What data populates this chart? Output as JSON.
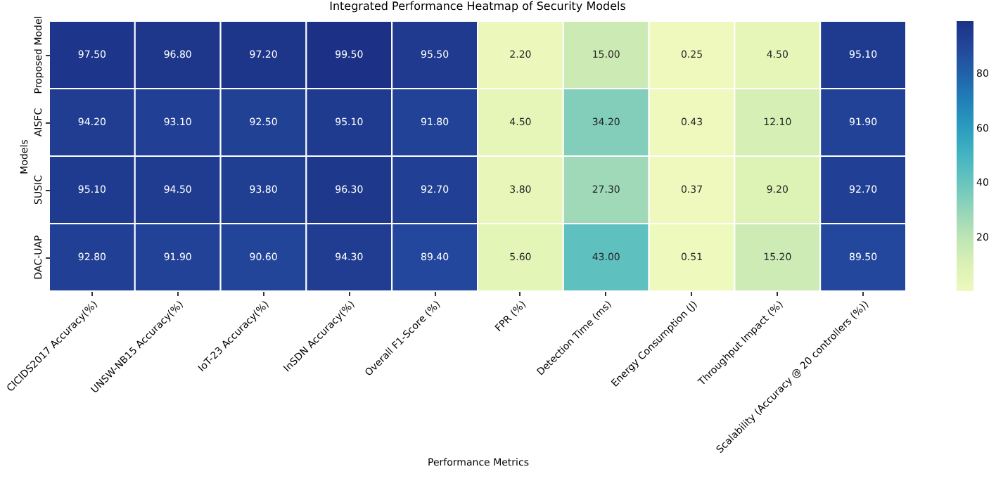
{
  "chart_data": {
    "type": "heatmap",
    "title": "Integrated Performance Heatmap of Security Models",
    "xlabel": "Performance Metrics",
    "ylabel": "Models",
    "categories": [
      "CICIDS2017 Accuracy(%)",
      "UNSW-NB15 Accuracy(%)",
      "IoT-23 Accuracy(%)",
      "InSDN Accuracy(%)",
      "Overall F1-Score (%)",
      "FPR (%)",
      "Detection Time (ms)",
      "Energy Consumption (J)",
      "Throughput Impact (%)",
      "Scalability (Accuracy @ 20 controllers (%))"
    ],
    "y_categories": [
      "Proposed Model",
      "AISFC",
      "SUSIC",
      "DAC-UAP"
    ],
    "cells": [
      [
        97.5,
        96.8,
        97.2,
        99.5,
        95.5,
        2.2,
        15.0,
        0.25,
        4.5,
        95.1
      ],
      [
        94.2,
        93.1,
        92.5,
        95.1,
        91.8,
        4.5,
        34.2,
        0.43,
        12.1,
        91.9
      ],
      [
        95.1,
        94.5,
        93.8,
        96.3,
        92.7,
        3.8,
        27.3,
        0.37,
        9.2,
        92.7
      ],
      [
        92.8,
        91.9,
        90.6,
        94.3,
        89.4,
        5.6,
        43.0,
        0.51,
        15.2,
        89.5
      ]
    ],
    "cell_labels": [
      [
        "97.50",
        "96.80",
        "97.20",
        "99.50",
        "95.50",
        "2.20",
        "15.00",
        "0.25",
        "4.50",
        "95.10"
      ],
      [
        "94.20",
        "93.10",
        "92.50",
        "95.10",
        "91.80",
        "4.50",
        "34.20",
        "0.43",
        "12.10",
        "91.90"
      ],
      [
        "95.10",
        "94.50",
        "93.80",
        "96.30",
        "92.70",
        "3.80",
        "27.30",
        "0.37",
        "9.20",
        "92.70"
      ],
      [
        "92.80",
        "91.90",
        "90.60",
        "94.30",
        "89.40",
        "5.60",
        "43.00",
        "0.51",
        "15.20",
        "89.50"
      ]
    ],
    "clim": [
      0.25,
      99.5
    ],
    "cticks": [
      20,
      40,
      60,
      80
    ]
  }
}
